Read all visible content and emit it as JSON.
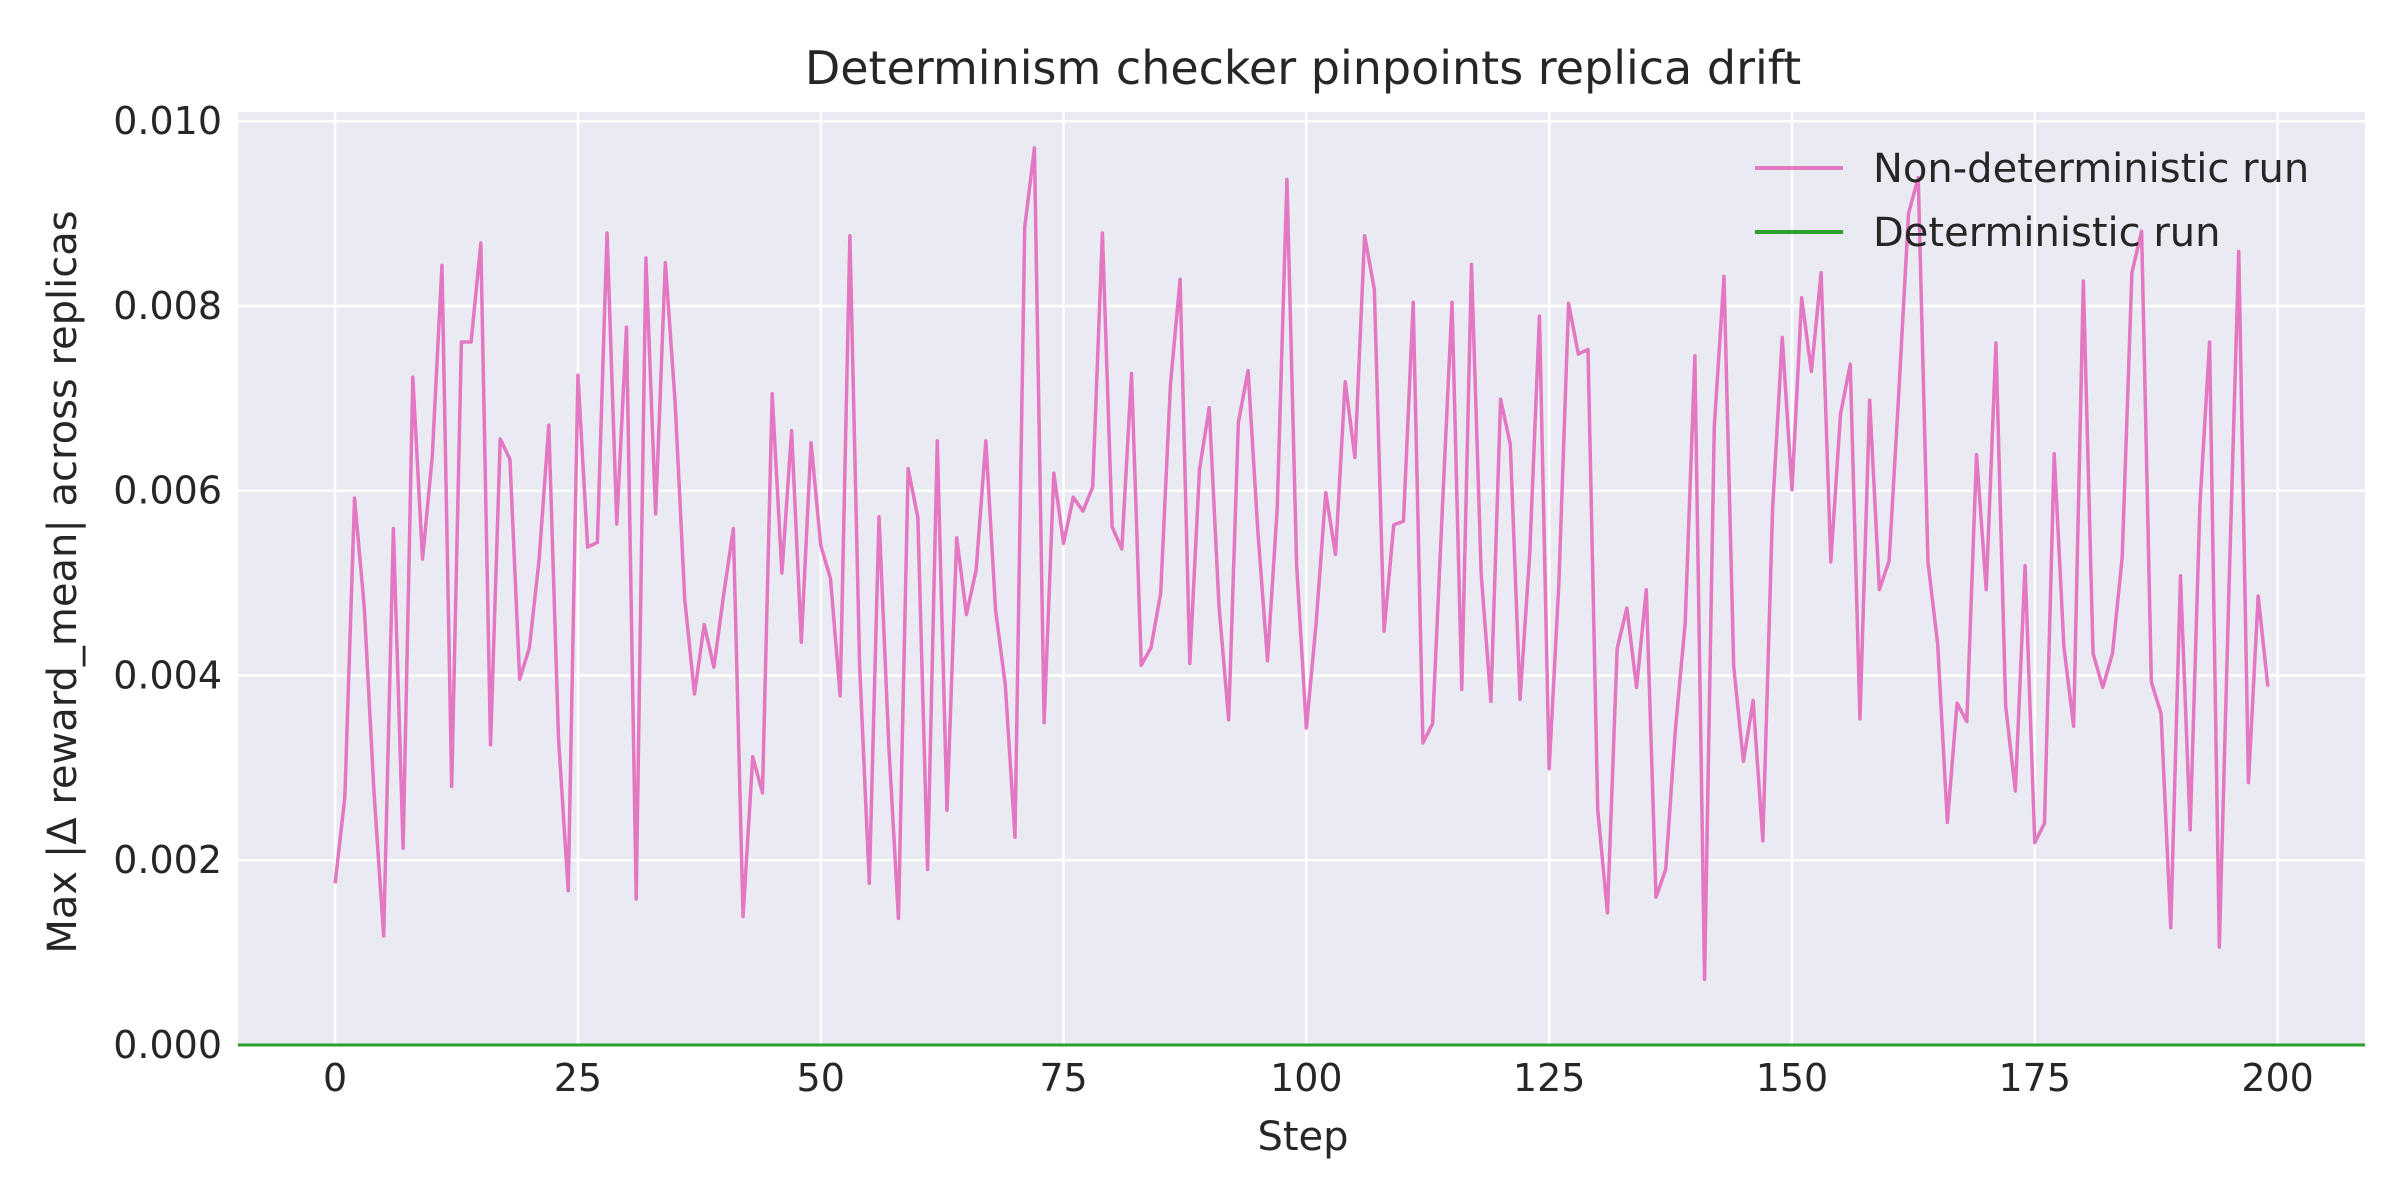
{
  "colors": {
    "plot_background": "#eaeaf2",
    "grid": "#ffffff",
    "non_deterministic": "#e377c2",
    "deterministic": "#2ca02c",
    "text": "#262626"
  },
  "chart_data": {
    "type": "line",
    "title": "Determinism checker pinpoints replica drift",
    "xlabel": "Step",
    "ylabel": "Max |Δ reward_mean| across replicas",
    "xlim": [
      -10,
      209
    ],
    "ylim": [
      0.0,
      0.0101
    ],
    "grid": true,
    "legend_placement": "top-right",
    "xticks": [
      0,
      25,
      50,
      75,
      100,
      125,
      150,
      175,
      200
    ],
    "xtick_labels": [
      "0",
      "25",
      "50",
      "75",
      "100",
      "125",
      "150",
      "175",
      "200"
    ],
    "yticks": [
      0.0,
      0.002,
      0.004,
      0.006,
      0.008,
      0.01
    ],
    "ytick_labels": [
      "0.000",
      "0.002",
      "0.004",
      "0.006",
      "0.008",
      "0.010"
    ],
    "series": [
      {
        "name": "Non-deterministic run",
        "color": "#e377c2",
        "x_start": 0,
        "x_step": 1,
        "values": [
          0.00175,
          0.00268,
          0.00592,
          0.00474,
          0.00274,
          0.00118,
          0.00559,
          0.00213,
          0.00723,
          0.00526,
          0.00637,
          0.00844,
          0.0028,
          0.00761,
          0.00761,
          0.00868,
          0.00325,
          0.00656,
          0.00634,
          0.00396,
          0.0043,
          0.00525,
          0.00671,
          0.00332,
          0.00167,
          0.00725,
          0.00539,
          0.00544,
          0.00879,
          0.00564,
          0.00777,
          0.00158,
          0.00852,
          0.00575,
          0.00847,
          0.00697,
          0.00482,
          0.0038,
          0.00455,
          0.00409,
          0.00487,
          0.00559,
          0.00139,
          0.00312,
          0.00273,
          0.00705,
          0.00511,
          0.00665,
          0.00436,
          0.00652,
          0.00541,
          0.00505,
          0.00378,
          0.00876,
          0.00412,
          0.00175,
          0.00572,
          0.00326,
          0.00137,
          0.00624,
          0.00571,
          0.0019,
          0.00654,
          0.00254,
          0.00549,
          0.00466,
          0.00514,
          0.00654,
          0.00471,
          0.0039,
          0.00225,
          0.00885,
          0.00971,
          0.00349,
          0.00619,
          0.00543,
          0.00593,
          0.00578,
          0.00604,
          0.00879,
          0.00561,
          0.00537,
          0.00727,
          0.00411,
          0.0043,
          0.00489,
          0.00714,
          0.00829,
          0.00413,
          0.00623,
          0.0069,
          0.00476,
          0.00352,
          0.00674,
          0.0073,
          0.00557,
          0.00416,
          0.00581,
          0.00937,
          0.00519,
          0.00343,
          0.00456,
          0.00598,
          0.00531,
          0.00718,
          0.00636,
          0.00876,
          0.00818,
          0.00448,
          0.00563,
          0.00567,
          0.00804,
          0.00327,
          0.00348,
          0.0058,
          0.00804,
          0.00385,
          0.00845,
          0.0051,
          0.00372,
          0.00699,
          0.0065,
          0.00374,
          0.00532,
          0.00789,
          0.00299,
          0.005,
          0.00803,
          0.00748,
          0.00753,
          0.00255,
          0.00143,
          0.00429,
          0.00473,
          0.00387,
          0.00493,
          0.0016,
          0.0019,
          0.00342,
          0.00456,
          0.00746,
          0.00071,
          0.00669,
          0.00832,
          0.0041,
          0.00307,
          0.00373,
          0.00221,
          0.00579,
          0.00766,
          0.00601,
          0.00809,
          0.00729,
          0.00836,
          0.00523,
          0.00683,
          0.00737,
          0.00353,
          0.00698,
          0.00493,
          0.00524,
          0.00706,
          0.009,
          0.00939,
          0.00523,
          0.00434,
          0.00241,
          0.0037,
          0.0035,
          0.00639,
          0.00493,
          0.0076,
          0.00367,
          0.00275,
          0.00519,
          0.00219,
          0.0024,
          0.0064,
          0.00431,
          0.00345,
          0.00827,
          0.00424,
          0.00387,
          0.00424,
          0.00528,
          0.00836,
          0.00881,
          0.00393,
          0.00359,
          0.00127,
          0.00508,
          0.00233,
          0.00584,
          0.00761,
          0.00106,
          0.00496,
          0.00859,
          0.00284,
          0.00486,
          0.00388
        ]
      },
      {
        "name": "Deterministic run",
        "color": "#2ca02c",
        "x_start": 0,
        "x_step": 1,
        "constant_value": 0.0,
        "count": 200
      }
    ]
  }
}
